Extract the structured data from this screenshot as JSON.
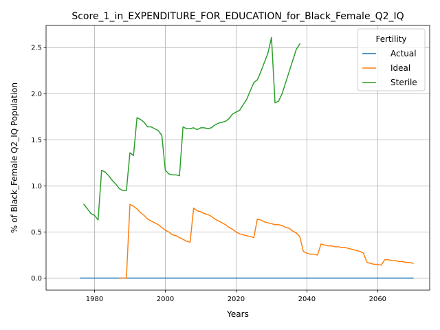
{
  "chart_data": {
    "type": "line",
    "title": "Score_1_in_EXPENDITURE_FOR_EDUCATION_for_Black_Female_Q2_IQ",
    "xlabel": "Years",
    "ylabel": "% of Black_Female Q2_IQ Population",
    "xlim": [
      1966.3,
      2074.7
    ],
    "ylim": [
      -0.13,
      2.74
    ],
    "xticks": [
      1980,
      2000,
      2020,
      2040,
      2060
    ],
    "xtick_labels": [
      "1980",
      "2000",
      "2020",
      "2040",
      "2060"
    ],
    "yticks": [
      0.0,
      0.5,
      1.0,
      1.5,
      2.0,
      2.5
    ],
    "ytick_labels": [
      "0.0",
      "0.5",
      "1.0",
      "1.5",
      "2.0",
      "2.5"
    ],
    "grid": true,
    "legend": {
      "title": "Fertility",
      "placement": "top-right"
    },
    "series": [
      {
        "name": "Actual",
        "color": "#1f77b4",
        "points": [
          [
            1976,
            0.0
          ],
          [
            2070,
            0.0
          ]
        ]
      },
      {
        "name": "Ideal",
        "color": "#ff7f0e",
        "points": [
          [
            1987,
            0.0
          ],
          [
            1988,
            0.0
          ],
          [
            1989,
            0.0
          ],
          [
            1990,
            0.8
          ],
          [
            1991,
            0.78
          ],
          [
            1992,
            0.75
          ],
          [
            1993,
            0.71
          ],
          [
            1994,
            0.68
          ],
          [
            1995,
            0.64
          ],
          [
            1996,
            0.62
          ],
          [
            1997,
            0.6
          ],
          [
            1998,
            0.58
          ],
          [
            1999,
            0.55
          ],
          [
            2000,
            0.52
          ],
          [
            2001,
            0.5
          ],
          [
            2002,
            0.47
          ],
          [
            2003,
            0.46
          ],
          [
            2004,
            0.44
          ],
          [
            2005,
            0.42
          ],
          [
            2006,
            0.4
          ],
          [
            2007,
            0.39
          ],
          [
            2008,
            0.76
          ],
          [
            2009,
            0.73
          ],
          [
            2010,
            0.72
          ],
          [
            2011,
            0.7
          ],
          [
            2012,
            0.69
          ],
          [
            2013,
            0.67
          ],
          [
            2014,
            0.64
          ],
          [
            2015,
            0.62
          ],
          [
            2016,
            0.6
          ],
          [
            2017,
            0.58
          ],
          [
            2018,
            0.55
          ],
          [
            2019,
            0.53
          ],
          [
            2020,
            0.5
          ],
          [
            2021,
            0.48
          ],
          [
            2022,
            0.47
          ],
          [
            2023,
            0.46
          ],
          [
            2024,
            0.45
          ],
          [
            2025,
            0.44
          ],
          [
            2026,
            0.64
          ],
          [
            2027,
            0.63
          ],
          [
            2028,
            0.61
          ],
          [
            2029,
            0.6
          ],
          [
            2030,
            0.59
          ],
          [
            2031,
            0.58
          ],
          [
            2032,
            0.58
          ],
          [
            2033,
            0.57
          ],
          [
            2034,
            0.55
          ],
          [
            2035,
            0.54
          ],
          [
            2036,
            0.51
          ],
          [
            2037,
            0.49
          ],
          [
            2038,
            0.45
          ],
          [
            2039,
            0.29
          ],
          [
            2040,
            0.27
          ],
          [
            2041,
            0.26
          ],
          [
            2042,
            0.26
          ],
          [
            2043,
            0.25
          ],
          [
            2044,
            0.37
          ],
          [
            2045,
            0.36
          ],
          [
            2046,
            0.35
          ],
          [
            2047,
            0.35
          ],
          [
            2048,
            0.34
          ],
          [
            2049,
            0.34
          ],
          [
            2050,
            0.33
          ],
          [
            2051,
            0.33
          ],
          [
            2052,
            0.32
          ],
          [
            2053,
            0.31
          ],
          [
            2054,
            0.3
          ],
          [
            2055,
            0.29
          ],
          [
            2056,
            0.27
          ],
          [
            2057,
            0.17
          ],
          [
            2058,
            0.16
          ],
          [
            2059,
            0.15
          ],
          [
            2060,
            0.15
          ],
          [
            2061,
            0.14
          ],
          [
            2062,
            0.2
          ],
          [
            2063,
            0.2
          ],
          [
            2064,
            0.19
          ],
          [
            2065,
            0.19
          ],
          [
            2066,
            0.18
          ],
          [
            2067,
            0.18
          ],
          [
            2068,
            0.17
          ],
          [
            2069,
            0.17
          ],
          [
            2070,
            0.16
          ]
        ]
      },
      {
        "name": "Sterile",
        "color": "#2ca02c",
        "points": [
          [
            1977,
            0.8
          ],
          [
            1978,
            0.75
          ],
          [
            1979,
            0.7
          ],
          [
            1980,
            0.68
          ],
          [
            1981,
            0.63
          ],
          [
            1982,
            1.17
          ],
          [
            1983,
            1.15
          ],
          [
            1984,
            1.11
          ],
          [
            1985,
            1.06
          ],
          [
            1986,
            1.02
          ],
          [
            1987,
            0.97
          ],
          [
            1988,
            0.95
          ],
          [
            1989,
            0.95
          ],
          [
            1990,
            1.36
          ],
          [
            1991,
            1.33
          ],
          [
            1992,
            1.74
          ],
          [
            1993,
            1.72
          ],
          [
            1994,
            1.69
          ],
          [
            1995,
            1.64
          ],
          [
            1996,
            1.64
          ],
          [
            1997,
            1.62
          ],
          [
            1998,
            1.6
          ],
          [
            1999,
            1.55
          ],
          [
            2000,
            1.17
          ],
          [
            2001,
            1.13
          ],
          [
            2002,
            1.12
          ],
          [
            2003,
            1.12
          ],
          [
            2004,
            1.11
          ],
          [
            2005,
            1.64
          ],
          [
            2006,
            1.62
          ],
          [
            2007,
            1.62
          ],
          [
            2008,
            1.63
          ],
          [
            2009,
            1.61
          ],
          [
            2010,
            1.63
          ],
          [
            2011,
            1.63
          ],
          [
            2012,
            1.62
          ],
          [
            2013,
            1.63
          ],
          [
            2014,
            1.66
          ],
          [
            2015,
            1.68
          ],
          [
            2016,
            1.69
          ],
          [
            2017,
            1.7
          ],
          [
            2018,
            1.73
          ],
          [
            2019,
            1.78
          ],
          [
            2020,
            1.8
          ],
          [
            2021,
            1.82
          ],
          [
            2022,
            1.88
          ],
          [
            2023,
            1.94
          ],
          [
            2024,
            2.03
          ],
          [
            2025,
            2.12
          ],
          [
            2026,
            2.15
          ],
          [
            2027,
            2.24
          ],
          [
            2028,
            2.34
          ],
          [
            2029,
            2.44
          ],
          [
            2030,
            2.61
          ],
          [
            2031,
            1.9
          ],
          [
            2032,
            1.92
          ],
          [
            2033,
            2.0
          ],
          [
            2034,
            2.12
          ],
          [
            2035,
            2.24
          ],
          [
            2036,
            2.36
          ],
          [
            2037,
            2.48
          ],
          [
            2038,
            2.54
          ]
        ]
      }
    ]
  }
}
